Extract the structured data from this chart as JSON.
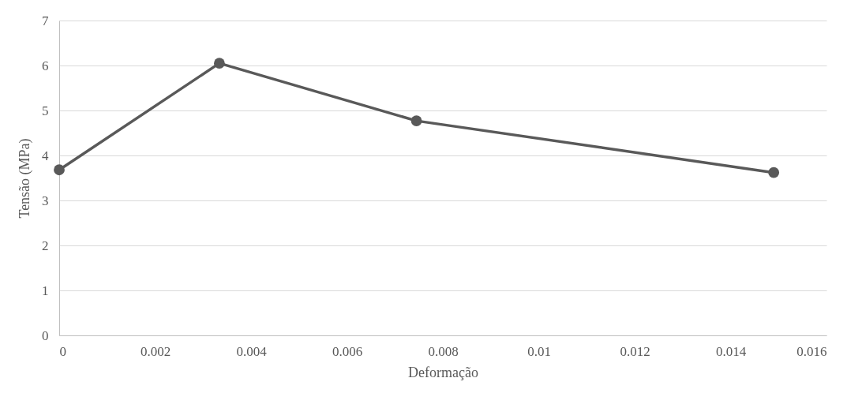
{
  "chart_data": {
    "type": "line",
    "xlabel": "Deformação",
    "ylabel": "Tensão (MPa)",
    "x": [
      0,
      0.00334,
      0.00745,
      0.0149
    ],
    "series": [
      {
        "color": "#595959",
        "values": [
          3.68,
          6.05,
          4.77,
          3.62
        ]
      }
    ],
    "xlim": [
      0,
      0.016
    ],
    "xticks": [
      0,
      0.002,
      0.004,
      0.006,
      0.008,
      0.01,
      0.012,
      0.014,
      0.016
    ],
    "ylim": [
      0,
      7
    ],
    "yticks": [
      0,
      1,
      2,
      3,
      4,
      5,
      6,
      7
    ],
    "grid": "y",
    "marker": "circle",
    "line_style": "solid",
    "legend": false
  }
}
